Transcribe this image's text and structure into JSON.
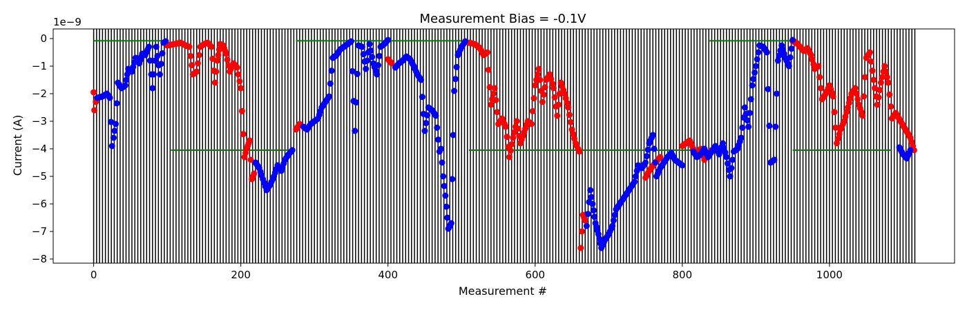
{
  "chart_data": {
    "type": "scatter",
    "title": "Measurement Bias = -0.1V",
    "xlabel": "Measurement #",
    "ylabel": "Current (A)",
    "y_multiplier_label": "1e−9",
    "xlim": [
      -55,
      1170
    ],
    "ylim": [
      -8.15,
      0.35
    ],
    "x_ticks": [
      0,
      200,
      400,
      600,
      800,
      1000
    ],
    "y_ticks": [
      0,
      -1,
      -2,
      -3,
      -4,
      -5,
      -6,
      -7,
      -8
    ],
    "y_tick_labels": [
      "0",
      "−1",
      "−2",
      "−3",
      "−4",
      "−5",
      "−6",
      "−7",
      "−8"
    ],
    "y_scale": 1e-09,
    "grid": false,
    "legend": "none",
    "vertical_line_spacing": 4,
    "vertical_line_range": [
      0,
      1116
    ],
    "colors": {
      "vertical_lines": "#000000",
      "high_color": "#ff0000",
      "low_color": "#0000ff",
      "level_lines": "#008000",
      "axes": "#000000"
    },
    "level_segments": [
      {
        "x0": 0,
        "x1": 95,
        "y": -0.08
      },
      {
        "x0": 275,
        "x1": 500,
        "y": -0.08
      },
      {
        "x0": 835,
        "x1": 950,
        "y": -0.08
      },
      {
        "x0": 105,
        "x1": 270,
        "y": -4.05
      },
      {
        "x0": 510,
        "x1": 815,
        "y": -4.05
      },
      {
        "x0": 950,
        "x1": 1085,
        "y": -4.05
      }
    ],
    "series": [
      {
        "color_key": "high_color",
        "segments": [
          [
            [
              0,
              -1.95
            ],
            [
              1,
              -2.6
            ],
            [
              3,
              -2.3
            ]
          ],
          [
            [
              100,
              -0.25
            ],
            [
              110,
              -0.2
            ],
            [
              118,
              -0.15
            ],
            [
              125,
              -0.25
            ],
            [
              130,
              -0.3
            ],
            [
              135,
              -1.3
            ],
            [
              140,
              -1.2
            ],
            [
              145,
              -0.3
            ],
            [
              150,
              -0.2
            ],
            [
              155,
              -0.15
            ],
            [
              160,
              -0.3
            ],
            [
              165,
              -1.6
            ],
            [
              168,
              -0.8
            ],
            [
              172,
              -0.2
            ],
            [
              176,
              -0.25
            ],
            [
              180,
              -0.55
            ],
            [
              185,
              -1.2
            ],
            [
              190,
              -0.9
            ],
            [
              195,
              -1.05
            ],
            [
              200,
              -1.8
            ],
            [
              205,
              -4.3
            ],
            [
              208,
              -4.0
            ],
            [
              212,
              -3.7
            ],
            [
              215,
              -5.1
            ],
            [
              218,
              -4.9
            ]
          ],
          [
            [
              275,
              -3.3
            ],
            [
              280,
              -3.1
            ]
          ],
          [
            [
              400,
              -0.75
            ],
            [
              405,
              -0.9
            ]
          ],
          [
            [
              510,
              -0.15
            ],
            [
              518,
              -0.2
            ],
            [
              525,
              -0.35
            ],
            [
              530,
              -0.6
            ],
            [
              535,
              -0.5
            ],
            [
              540,
              -2.4
            ],
            [
              545,
              -1.8
            ],
            [
              550,
              -3.1
            ],
            [
              555,
              -2.9
            ],
            [
              560,
              -3.2
            ],
            [
              565,
              -4.3
            ],
            [
              570,
              -3.6
            ],
            [
              575,
              -3.0
            ],
            [
              580,
              -3.8
            ],
            [
              585,
              -3.4
            ],
            [
              590,
              -3.0
            ],
            [
              595,
              -3.1
            ],
            [
              600,
              -1.7
            ],
            [
              605,
              -1.1
            ],
            [
              610,
              -2.3
            ],
            [
              615,
              -1.5
            ],
            [
              620,
              -1.3
            ],
            [
              625,
              -1.8
            ],
            [
              630,
              -2.8
            ],
            [
              635,
              -1.6
            ],
            [
              640,
              -2.0
            ],
            [
              645,
              -2.5
            ],
            [
              650,
              -3.3
            ],
            [
              655,
              -3.8
            ],
            [
              660,
              -4.1
            ],
            [
              662,
              -7.6
            ],
            [
              665,
              -6.4
            ],
            [
              668,
              -6.6
            ]
          ],
          [
            [
              750,
              -5.05
            ],
            [
              755,
              -4.8
            ],
            [
              762,
              -4.55
            ],
            [
              770,
              -4.3
            ]
          ],
          [
            [
              800,
              -3.9
            ],
            [
              810,
              -3.7
            ],
            [
              818,
              -4.2
            ],
            [
              825,
              -4.0
            ],
            [
              830,
              -4.4
            ],
            [
              835,
              -4.2
            ],
            [
              840,
              -4.05
            ]
          ],
          [
            [
              950,
              -0.1
            ],
            [
              955,
              -0.15
            ],
            [
              960,
              -0.3
            ],
            [
              965,
              -0.45
            ],
            [
              970,
              -0.35
            ],
            [
              975,
              -0.6
            ],
            [
              980,
              -1.1
            ],
            [
              985,
              -1.0
            ],
            [
              990,
              -2.2
            ],
            [
              995,
              -2.0
            ],
            [
              1000,
              -1.7
            ],
            [
              1005,
              -2.1
            ],
            [
              1010,
              -3.8
            ],
            [
              1015,
              -3.3
            ],
            [
              1020,
              -3.0
            ],
            [
              1025,
              -2.5
            ],
            [
              1030,
              -2.0
            ],
            [
              1035,
              -1.8
            ],
            [
              1040,
              -2.4
            ],
            [
              1045,
              -2.8
            ],
            [
              1050,
              -0.7
            ],
            [
              1055,
              -0.5
            ],
            [
              1060,
              -1.5
            ],
            [
              1065,
              -2.4
            ],
            [
              1070,
              -1.6
            ],
            [
              1075,
              -1.0
            ],
            [
              1080,
              -1.6
            ],
            [
              1085,
              -2.9
            ],
            [
              1090,
              -2.7
            ],
            [
              1110,
              -3.6
            ],
            [
              1115,
              -4.05
            ]
          ]
        ]
      },
      {
        "color_key": "low_color",
        "segments": [
          [
            [
              5,
              -2.15
            ],
            [
              12,
              -2.1
            ],
            [
              18,
              -2.0
            ],
            [
              22,
              -2.15
            ],
            [
              25,
              -3.9
            ],
            [
              27,
              -3.6
            ],
            [
              30,
              -3.1
            ],
            [
              33,
              -1.6
            ],
            [
              38,
              -1.8
            ],
            [
              43,
              -1.7
            ],
            [
              47,
              -1.1
            ],
            [
              52,
              -1.2
            ],
            [
              57,
              -0.7
            ],
            [
              62,
              -0.9
            ],
            [
              66,
              -0.55
            ],
            [
              70,
              -0.6
            ],
            [
              75,
              -0.3
            ],
            [
              80,
              -1.8
            ],
            [
              85,
              -0.3
            ],
            [
              90,
              -1.3
            ],
            [
              95,
              -0.15
            ],
            [
              98,
              -0.1
            ]
          ],
          [
            [
              220,
              -4.5
            ],
            [
              225,
              -4.7
            ],
            [
              230,
              -5.1
            ],
            [
              235,
              -5.5
            ],
            [
              240,
              -5.3
            ],
            [
              245,
              -5.0
            ],
            [
              250,
              -4.6
            ],
            [
              255,
              -4.8
            ],
            [
              260,
              -4.4
            ],
            [
              265,
              -4.2
            ],
            [
              270,
              -4.05
            ]
          ],
          [
            [
              285,
              -3.2
            ],
            [
              290,
              -3.3
            ],
            [
              295,
              -3.1
            ],
            [
              300,
              -3.0
            ],
            [
              305,
              -2.9
            ],
            [
              310,
              -2.5
            ],
            [
              315,
              -2.3
            ],
            [
              320,
              -2.1
            ],
            [
              325,
              -0.7
            ],
            [
              330,
              -0.6
            ],
            [
              335,
              -0.4
            ],
            [
              340,
              -0.3
            ],
            [
              345,
              -0.2
            ],
            [
              350,
              -0.1
            ],
            [
              355,
              -3.35
            ],
            [
              360,
              -0.25
            ],
            [
              365,
              -0.3
            ],
            [
              370,
              -1.1
            ],
            [
              375,
              -0.2
            ],
            [
              380,
              -0.9
            ],
            [
              385,
              -1.3
            ],
            [
              390,
              -0.3
            ],
            [
              395,
              -0.2
            ],
            [
              400,
              -0.05
            ]
          ],
          [
            [
              410,
              -1.05
            ],
            [
              415,
              -0.9
            ],
            [
              420,
              -0.8
            ],
            [
              425,
              -0.65
            ],
            [
              430,
              -0.75
            ],
            [
              435,
              -1.0
            ],
            [
              440,
              -1.3
            ],
            [
              445,
              -1.5
            ],
            [
              450,
              -3.35
            ],
            [
              455,
              -2.5
            ],
            [
              460,
              -2.6
            ],
            [
              465,
              -2.8
            ],
            [
              470,
              -4.1
            ],
            [
              472,
              -4.0
            ],
            [
              475,
              -5.0
            ],
            [
              478,
              -5.7
            ],
            [
              482,
              -6.9
            ],
            [
              486,
              -6.7
            ],
            [
              490,
              -1.9
            ],
            [
              495,
              -0.6
            ],
            [
              500,
              -0.3
            ],
            [
              505,
              -0.1
            ]
          ],
          [
            [
              670,
              -6.8
            ],
            [
              675,
              -5.5
            ],
            [
              678,
              -6.0
            ],
            [
              682,
              -6.7
            ],
            [
              686,
              -7.1
            ],
            [
              690,
              -7.6
            ],
            [
              695,
              -7.3
            ],
            [
              700,
              -7.1
            ],
            [
              705,
              -6.8
            ],
            [
              710,
              -6.2
            ],
            [
              715,
              -6.0
            ],
            [
              720,
              -5.8
            ],
            [
              725,
              -5.6
            ],
            [
              730,
              -5.4
            ],
            [
              735,
              -5.2
            ],
            [
              740,
              -4.6
            ],
            [
              745,
              -4.7
            ],
            [
              750,
              -4.5
            ],
            [
              755,
              -3.8
            ],
            [
              760,
              -3.5
            ],
            [
              765,
              -5.0
            ],
            [
              770,
              -4.7
            ],
            [
              775,
              -4.5
            ],
            [
              780,
              -4.3
            ],
            [
              785,
              -4.15
            ],
            [
              790,
              -4.4
            ],
            [
              795,
              -4.5
            ],
            [
              800,
              -4.6
            ]
          ],
          [
            [
              815,
              -4.1
            ],
            [
              820,
              -4.3
            ],
            [
              825,
              -4.2
            ],
            [
              830,
              -4.0
            ],
            [
              835,
              -4.3
            ],
            [
              840,
              -4.1
            ],
            [
              845,
              -3.9
            ],
            [
              850,
              -4.2
            ],
            [
              855,
              -3.8
            ],
            [
              860,
              -4.3
            ],
            [
              865,
              -5.0
            ],
            [
              870,
              -4.1
            ],
            [
              875,
              -4.0
            ],
            [
              880,
              -3.6
            ],
            [
              885,
              -2.5
            ],
            [
              890,
              -3.2
            ],
            [
              895,
              -1.7
            ],
            [
              900,
              -1.0
            ],
            [
              905,
              -0.25
            ],
            [
              910,
              -0.3
            ],
            [
              915,
              -0.5
            ],
            [
              920,
              -4.5
            ],
            [
              925,
              -4.4
            ],
            [
              930,
              -0.8
            ],
            [
              935,
              -0.25
            ],
            [
              940,
              -0.7
            ],
            [
              945,
              -1.0
            ],
            [
              950,
              -0.05
            ]
          ],
          [
            [
              1095,
              -3.95
            ],
            [
              1100,
              -4.2
            ],
            [
              1105,
              -4.35
            ],
            [
              1110,
              -4.05
            ]
          ]
        ]
      }
    ]
  }
}
